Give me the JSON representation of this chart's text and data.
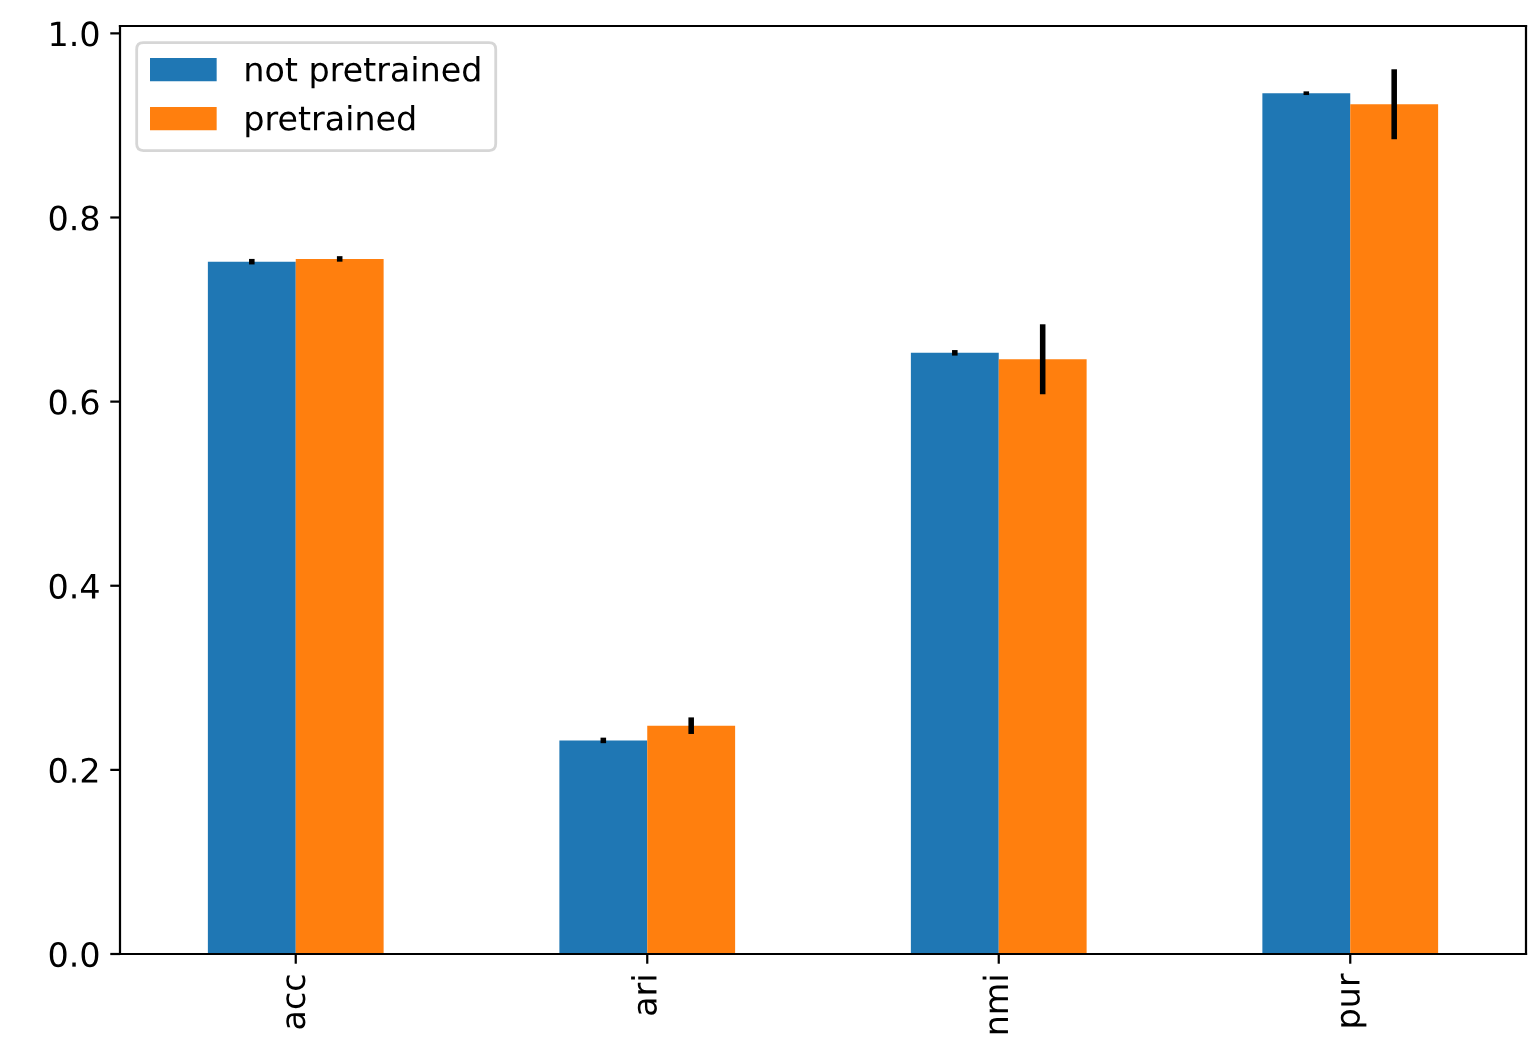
{
  "chart_data": {
    "type": "bar",
    "categories": [
      "acc",
      "ari",
      "nmi",
      "pur"
    ],
    "series": [
      {
        "name": "not pretrained",
        "color": "#1f77b4",
        "values": [
          0.752,
          0.232,
          0.653,
          0.935
        ],
        "errors": [
          0.003,
          0.003,
          0.003,
          0.002
        ]
      },
      {
        "name": "pretrained",
        "color": "#ff7f0e",
        "values": [
          0.755,
          0.248,
          0.646,
          0.923
        ],
        "errors": [
          0.003,
          0.009,
          0.038,
          0.038
        ]
      }
    ],
    "ylim": [
      0,
      1.008
    ],
    "yticks": [
      {
        "value": 0,
        "label": "0.0"
      },
      0.2,
      0.4,
      0.6,
      0.8,
      {
        "value": 1,
        "label": "1.0"
      }
    ],
    "grid": false,
    "legend": "top left"
  }
}
